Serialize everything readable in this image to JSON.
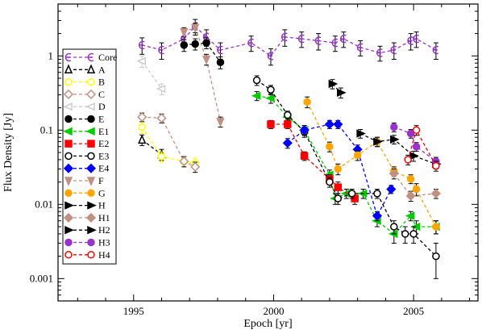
{
  "chart_data": {
    "type": "scatter",
    "title": "",
    "xlabel": "Epoch [yr]",
    "ylabel": "Flux Density [Jy]",
    "xlim": [
      1992.3,
      2007.3
    ],
    "ylim": [
      0.0005,
      5
    ],
    "yscale": "log",
    "x_ticks": [
      1995,
      2000,
      2005
    ],
    "x_tick_labels": [
      "1995",
      "2000",
      "2005"
    ],
    "y_ticks": [
      0.001,
      0.01,
      0.1,
      1
    ],
    "y_tick_labels": [
      "0.001",
      "0.01",
      "0.1",
      "1"
    ],
    "grid": false,
    "legend_position": "top-left",
    "series": [
      {
        "name": "Core",
        "color": "#9933cc",
        "marker": "core",
        "fill": false,
        "x": [
          1995.3,
          1996.0,
          1996.8,
          1997.2,
          1997.6,
          1998.1,
          1999.2,
          1999.9,
          2000.4,
          2001.0,
          2001.6,
          2002.2,
          2002.5,
          2003.1,
          2003.8,
          2004.3,
          2004.9,
          2005.1,
          2005.8
        ],
        "y": [
          1.4,
          1.2,
          1.7,
          2.5,
          1.8,
          1.2,
          1.5,
          1.0,
          1.8,
          1.7,
          1.6,
          1.5,
          1.7,
          1.3,
          1.1,
          1.2,
          1.6,
          1.7,
          1.2
        ],
        "err": [
          0.35,
          0.3,
          0.4,
          0.6,
          0.45,
          0.3,
          0.35,
          0.25,
          0.45,
          0.4,
          0.4,
          0.35,
          0.4,
          0.3,
          0.25,
          0.3,
          0.4,
          0.4,
          0.3
        ]
      },
      {
        "name": "A",
        "color": "#000000",
        "marker": "triangle",
        "fill": false,
        "x": [
          1995.3,
          1996.0
        ],
        "y": [
          0.074,
          0.047
        ],
        "err": [
          0.012,
          0.008
        ]
      },
      {
        "name": "B",
        "color": "#ffff00",
        "marker": "circle",
        "fill": false,
        "x": [
          1995.3,
          1996.0,
          1996.8,
          1997.2
        ],
        "y": [
          0.11,
          0.044,
          0.038,
          0.036
        ],
        "err": [
          0.02,
          0.007,
          0.006,
          0.006
        ]
      },
      {
        "name": "C",
        "color": "#c09080",
        "marker": "diamond",
        "fill": false,
        "x": [
          1995.3,
          1996.0,
          1996.8,
          1997.2
        ],
        "y": [
          0.15,
          0.145,
          0.038,
          0.032
        ],
        "err": [
          0.02,
          0.02,
          0.006,
          0.005
        ]
      },
      {
        "name": "D",
        "color": "#cccccc",
        "marker": "triangle-left",
        "fill": false,
        "x": [
          1995.3,
          1996.0
        ],
        "y": [
          0.85,
          0.36
        ],
        "err": [
          0.15,
          0.06
        ]
      },
      {
        "name": "E",
        "color": "#000000",
        "marker": "circle",
        "fill": true,
        "x": [
          1996.8,
          1997.2,
          1997.6,
          1998.1
        ],
        "y": [
          1.4,
          1.45,
          1.5,
          0.82
        ],
        "err": [
          0.25,
          0.25,
          0.25,
          0.15
        ]
      },
      {
        "name": "E1",
        "color": "#00cc00",
        "marker": "triangle-left",
        "fill": true,
        "x": [
          1999.4,
          1999.9,
          2000.5,
          2001.1,
          2002.0,
          2002.2,
          2002.6,
          2003.2,
          2003.7,
          2004.3,
          2004.9,
          2005.1,
          2005.8
        ],
        "y": [
          0.29,
          0.27,
          0.15,
          0.1,
          0.025,
          0.012,
          0.014,
          0.014,
          0.006,
          0.004,
          0.007,
          0.005,
          0.005
        ],
        "err": [
          0.04,
          0.04,
          0.02,
          0.015,
          0.004,
          0.002,
          0.002,
          0.002,
          0.001,
          0.001,
          0.001,
          0.001,
          0.001
        ]
      },
      {
        "name": "E2",
        "color": "#ff0000",
        "marker": "square",
        "fill": true,
        "x": [
          1999.9,
          2000.5,
          2001.1,
          2002.0,
          2002.3,
          2002.9
        ],
        "y": [
          0.12,
          0.12,
          0.045,
          0.022,
          0.017,
          0.012
        ],
        "err": [
          0.015,
          0.015,
          0.006,
          0.003,
          0.003,
          0.002
        ]
      },
      {
        "name": "E3",
        "color": "#000000",
        "marker": "circle",
        "fill": false,
        "x": [
          1999.4,
          1999.9,
          2000.5,
          2001.1,
          2002.0,
          2002.3,
          2002.8,
          2003.7,
          2004.3,
          2004.7,
          2005.0,
          2005.8
        ],
        "y": [
          0.47,
          0.35,
          0.16,
          0.095,
          0.02,
          0.012,
          0.014,
          0.014,
          0.005,
          0.004,
          0.004,
          0.002
        ],
        "err": [
          0.07,
          0.05,
          0.02,
          0.015,
          0.003,
          0.002,
          0.002,
          0.002,
          0.001,
          0.001,
          0.001,
          0.001
        ]
      },
      {
        "name": "E4",
        "color": "#0000ff",
        "marker": "diamond",
        "fill": true,
        "x": [
          2000.5,
          2001.1,
          2002.0,
          2002.3,
          2003.0,
          2003.7,
          2004.2
        ],
        "y": [
          0.067,
          0.1,
          0.12,
          0.12,
          0.055,
          0.007,
          0.016
        ],
        "err": [
          0.01,
          0.015,
          0.015,
          0.015,
          0.008,
          0.001,
          0.002
        ]
      },
      {
        "name": "F",
        "color": "#c09080",
        "marker": "triangle-down",
        "fill": true,
        "x": [
          1996.8,
          1997.2,
          1997.6,
          1998.1
        ],
        "y": [
          2.1,
          2.4,
          0.9,
          0.13
        ],
        "err": [
          0.3,
          0.35,
          0.15,
          0.02
        ]
      },
      {
        "name": "G",
        "color": "#ffa500",
        "marker": "circle",
        "fill": true,
        "x": [
          2001.2,
          2002.0,
          2002.3,
          2003.0,
          2003.7,
          2004.3,
          2004.9,
          2005.1,
          2005.8
        ],
        "y": [
          0.24,
          0.06,
          0.03,
          0.046,
          0.07,
          0.028,
          0.022,
          0.016,
          0.005
        ],
        "err": [
          0.04,
          0.009,
          0.005,
          0.007,
          0.01,
          0.004,
          0.003,
          0.003,
          0.001
        ]
      },
      {
        "name": "H",
        "color": "#000000",
        "marker": "triangle-right",
        "fill": true,
        "x": [
          2003.1,
          2003.7,
          2004.3,
          2005.0,
          2005.8
        ],
        "y": [
          0.09,
          0.07,
          0.075,
          0.045,
          0.035
        ],
        "err": [
          0.012,
          0.01,
          0.01,
          0.007,
          0.005
        ]
      },
      {
        "name": "H1",
        "color": "#c09080",
        "marker": "diamond",
        "fill": true,
        "x": [
          2004.3,
          2004.9,
          2005.8
        ],
        "y": [
          0.026,
          0.013,
          0.014
        ],
        "err": [
          0.004,
          0.002,
          0.002
        ]
      },
      {
        "name": "H2",
        "color": "#000000",
        "marker": "triangle-right",
        "fill": true,
        "x": [
          2002.1,
          2002.4
        ],
        "y": [
          0.42,
          0.32
        ],
        "err": [
          0.06,
          0.05
        ]
      },
      {
        "name": "H3",
        "color": "#9933cc",
        "marker": "circle",
        "fill": true,
        "x": [
          2004.3,
          2004.9,
          2005.1,
          2005.8
        ],
        "y": [
          0.11,
          0.09,
          0.06,
          0.038
        ],
        "err": [
          0.015,
          0.012,
          0.008,
          0.005
        ]
      },
      {
        "name": "H4",
        "color": "#ff0000",
        "marker": "circle",
        "fill": false,
        "x": [
          2004.8,
          2005.1,
          2005.8
        ],
        "y": [
          0.04,
          0.1,
          0.033
        ],
        "err": [
          0.006,
          0.015,
          0.005
        ]
      }
    ]
  }
}
